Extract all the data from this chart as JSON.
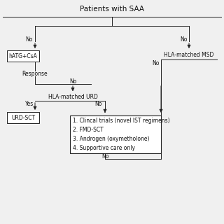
{
  "title": "Patients with SAA",
  "box_ist": "hATG+CsA",
  "box_urd_label": "HLA-matched URD",
  "box_urd_sct": "URD-SCT",
  "box_msd_label": "HLA-matched MSD",
  "box_options_lines": [
    "1. Clincal trials (novel IST regimens)",
    "2. FMD-SCT",
    "3. Androgen (oxymetholone)",
    "4. Supportive care only"
  ],
  "label_no": "No",
  "label_yes": "Yes",
  "label_response": "Response",
  "bg_color": "#f0f0f0",
  "line_color": "#222222",
  "box_color": "#ffffff",
  "text_color": "#111111",
  "font_size": 5.5,
  "title_font_size": 7.5
}
